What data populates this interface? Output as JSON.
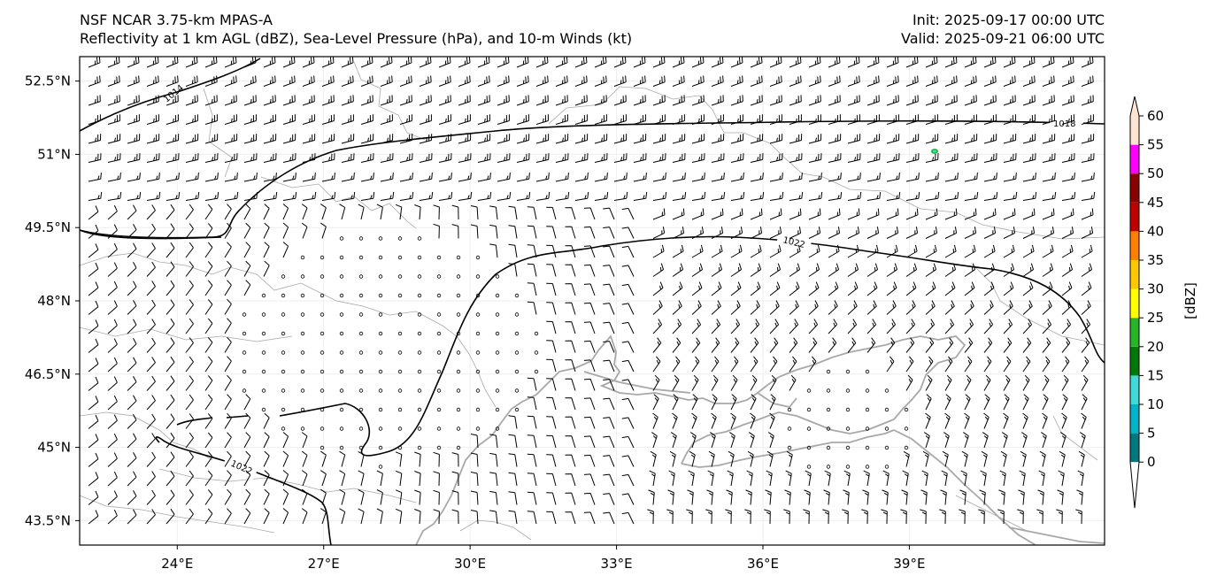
{
  "header": {
    "model": "NSF NCAR 3.75-km MPAS-A",
    "fields": "Reflectivity at 1 km AGL (dBZ), Sea-Level Pressure (hPa), and 10-m Winds (kt)",
    "init": "Init: 2025-09-17 00:00 UTC",
    "valid": "Valid: 2025-09-21 06:00 UTC"
  },
  "map": {
    "lon_range": [
      22,
      43
    ],
    "lat_range": [
      43,
      53
    ],
    "lat_ticks": [
      "52.5°N",
      "51°N",
      "49.5°N",
      "48°N",
      "46.5°N",
      "45°N",
      "43.5°N"
    ],
    "lon_ticks": [
      "24°E",
      "27°E",
      "30°E",
      "33°E",
      "36°E",
      "39°E"
    ],
    "isobar_labels": [
      "1014",
      "1018",
      "1022",
      "1022"
    ]
  },
  "colorbar": {
    "label": "[dBZ]",
    "ticks": [
      "0",
      "5",
      "10",
      "15",
      "20",
      "25",
      "30",
      "35",
      "40",
      "45",
      "50",
      "55",
      "60"
    ],
    "colors": [
      "#ffffff",
      "#00787f",
      "#00b4c8",
      "#40d8d8",
      "#00780a",
      "#28b428",
      "#ffff00",
      "#ffc800",
      "#ff7f00",
      "#c00000",
      "#8a0000",
      "#ff00ff",
      "#ffe4d4"
    ]
  }
}
